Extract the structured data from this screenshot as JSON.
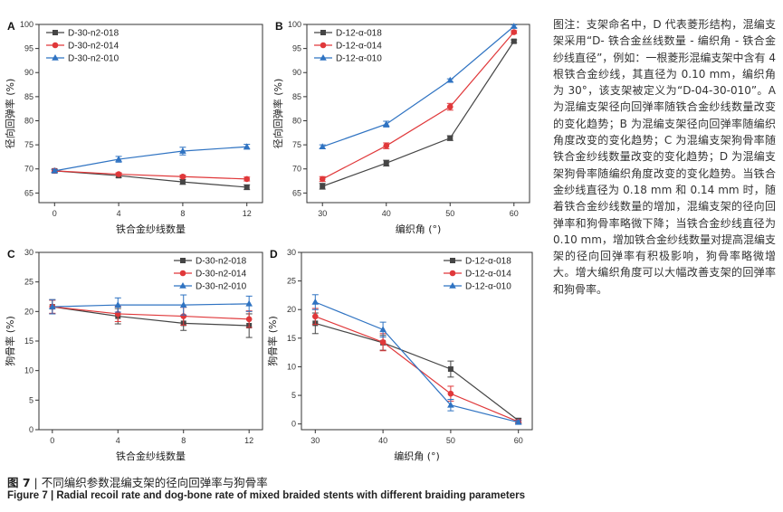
{
  "caption": {
    "cn_fig": "图 7",
    "cn_sep": "|",
    "cn_text": "不同编织参数混编支架的径向回弹率与狗骨率",
    "en_fig": "Figure 7",
    "en_sep": "|",
    "en_text": "Radial recoil rate and dog-bone rate of mixed braided stents with different braiding parameters"
  },
  "note": "图注：支架命名中，D 代表菱形结构，混编支架采用“D- 铁合金丝线数量 - 编织角 - 铁合金纱线直径”，例如：一根菱形混编支架中含有 4 根铁合金纱线，其直径为 0.10 mm，编织角为 30°，该支架被定义为“D-04-30-010”。A 为混编支架径向回弹率随铁合金纱线数量改变的变化趋势；B 为混编支架径向回弹率随编织角度改变的变化趋势；C 为混编支架狗骨率随铁合金纱线数量改变的变化趋势；D 为混编支架狗骨率随编织角度改变的变化趋势。当铁合金纱线直径为 0.18 mm 和 0.14 mm 时，随着铁合金纱线数量的增加，混编支架的径向回弹率和狗骨率略微下降；当铁合金纱线直径为 0.10 mm，增加铁合金纱线数量对提高混编支架的径向回弹率有积极影响，狗骨率略微增大。增大编织角度可以大幅改善支架的回弹率和狗骨率。",
  "colors": {
    "black": "#454545",
    "red": "#e0383a",
    "blue": "#2f73c2"
  },
  "chart_data": [
    {
      "id": "A",
      "type": "line",
      "panel_label": "A",
      "xlabel": "铁合金纱线数量",
      "ylabel": "径向回弹率 (%)",
      "x": [
        0,
        4,
        8,
        12
      ],
      "xticks": [
        "0",
        "4",
        "8",
        "12"
      ],
      "ylim": [
        63,
        100
      ],
      "yticks": [
        65,
        70,
        75,
        80,
        85,
        90,
        95,
        100
      ],
      "legend_position": "top-left",
      "series": [
        {
          "name": "D-30-n2-018",
          "color": "black",
          "marker": "square",
          "values": [
            69.6,
            68.6,
            67.3,
            66.2
          ],
          "errors": [
            0.3,
            0.4,
            0.5,
            0.5
          ]
        },
        {
          "name": "D-30-n2-014",
          "color": "red",
          "marker": "circle",
          "values": [
            69.6,
            68.9,
            68.4,
            67.9
          ],
          "errors": [
            0.3,
            0.3,
            0.3,
            0.4
          ]
        },
        {
          "name": "D-30-n2-010",
          "color": "blue",
          "marker": "triangle",
          "values": [
            69.6,
            72.0,
            73.7,
            74.6
          ],
          "errors": [
            0.3,
            0.6,
            0.8,
            0.5
          ]
        }
      ]
    },
    {
      "id": "B",
      "type": "line",
      "panel_label": "B",
      "xlabel": "编织角 (°)",
      "ylabel": "径向回弹率 (%)",
      "x": [
        30,
        40,
        50,
        60
      ],
      "xticks": [
        "30",
        "40",
        "50",
        "60"
      ],
      "ylim": [
        63,
        100
      ],
      "yticks": [
        65,
        70,
        75,
        80,
        85,
        90,
        95,
        100
      ],
      "legend_position": "top-left",
      "series": [
        {
          "name": "D-12-α-018",
          "color": "black",
          "marker": "square",
          "values": [
            66.4,
            71.2,
            76.4,
            96.5
          ],
          "errors": [
            0.6,
            0.6,
            0.5,
            0.3
          ]
        },
        {
          "name": "D-12-α-014",
          "color": "red",
          "marker": "circle",
          "values": [
            67.9,
            74.8,
            82.9,
            98.4
          ],
          "errors": [
            0.5,
            0.6,
            0.7,
            0.3
          ]
        },
        {
          "name": "D-12-α-010",
          "color": "blue",
          "marker": "triangle",
          "values": [
            74.6,
            79.3,
            88.4,
            99.6
          ],
          "errors": [
            0.4,
            0.6,
            0.3,
            0.3
          ]
        }
      ]
    },
    {
      "id": "C",
      "type": "line",
      "panel_label": "C",
      "xlabel": "铁合金纱线数量",
      "ylabel": "狗骨率 (%)",
      "x": [
        0,
        4,
        8,
        12
      ],
      "xticks": [
        "0",
        "4",
        "8",
        "12"
      ],
      "ylim": [
        0,
        30
      ],
      "yticks": [
        0,
        5,
        10,
        15,
        20,
        25,
        30
      ],
      "legend_position": "top-right",
      "series": [
        {
          "name": "D-30-n2-018",
          "color": "black",
          "marker": "square",
          "values": [
            20.8,
            19.2,
            18.0,
            17.6
          ],
          "errors": [
            1.2,
            1.3,
            1.2,
            2.0
          ]
        },
        {
          "name": "D-30-n2-014",
          "color": "red",
          "marker": "circle",
          "values": [
            20.8,
            19.6,
            19.2,
            18.7
          ],
          "errors": [
            1.1,
            1.3,
            1.5,
            1.4
          ]
        },
        {
          "name": "D-30-n2-010",
          "color": "blue",
          "marker": "triangle",
          "values": [
            20.8,
            21.1,
            21.1,
            21.3
          ],
          "errors": [
            1.2,
            1.2,
            1.7,
            1.3
          ]
        }
      ]
    },
    {
      "id": "D",
      "type": "line",
      "panel_label": "D",
      "xlabel": "编织角 (°)",
      "ylabel": "狗骨率 (%)",
      "x": [
        30,
        40,
        50,
        60
      ],
      "xticks": [
        "30",
        "40",
        "50",
        "60"
      ],
      "ylim": [
        -1,
        30
      ],
      "yticks": [
        0,
        5,
        10,
        15,
        20,
        25,
        30
      ],
      "legend_position": "top-right",
      "series": [
        {
          "name": "D-12-α-018",
          "color": "black",
          "marker": "square",
          "values": [
            17.6,
            14.2,
            9.6,
            0.6
          ],
          "errors": [
            1.8,
            1.3,
            1.4,
            0.4
          ]
        },
        {
          "name": "D-12-α-014",
          "color": "red",
          "marker": "circle",
          "values": [
            18.8,
            14.3,
            5.3,
            0.4
          ],
          "errors": [
            1.4,
            1.5,
            1.3,
            0.3
          ]
        },
        {
          "name": "D-12-α-010",
          "color": "blue",
          "marker": "triangle",
          "values": [
            21.3,
            16.5,
            3.3,
            0.3
          ],
          "errors": [
            1.3,
            1.3,
            1.0,
            0.3
          ]
        }
      ]
    }
  ]
}
